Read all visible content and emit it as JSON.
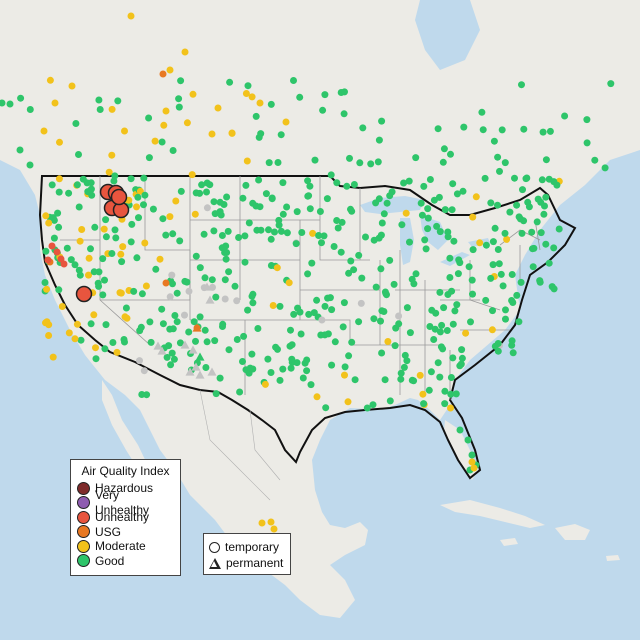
{
  "colors": {
    "water": "#bfd9ec",
    "land": "#ecebe6",
    "us_land": "#efeeea",
    "border": "#111111",
    "state_line": "#9a9a9a",
    "hazardous": "#7e2a2a",
    "very_unhealthy": "#8e5bb0",
    "unhealthy": "#e8553e",
    "usg": "#e87822",
    "moderate": "#f2c21b",
    "good": "#2ec56a",
    "nodata": "#c3c3c3"
  },
  "legend": {
    "title": "Air Quality Index",
    "items": [
      {
        "label": "Hazardous",
        "color": "#7e2a2a"
      },
      {
        "label": "Very Unhealthy",
        "color": "#8e5bb0"
      },
      {
        "label": "Unhealthy",
        "color": "#e8553e"
      },
      {
        "label": "USG",
        "color": "#e87822"
      },
      {
        "label": "Moderate",
        "color": "#f2c21b"
      },
      {
        "label": "Good",
        "color": "#2ec56a"
      }
    ]
  },
  "shape_legend": {
    "items": [
      {
        "label": "temporary",
        "shape": "circle"
      },
      {
        "label": "permanent",
        "shape": "triangle"
      }
    ]
  },
  "markers": {
    "unhealthy_large": [
      [
        108,
        192
      ],
      [
        116,
        193
      ],
      [
        112,
        208
      ],
      [
        121,
        210
      ],
      [
        119,
        197
      ],
      [
        84,
        294
      ]
    ],
    "unhealthy_small": [
      [
        52,
        246
      ],
      [
        57,
        252
      ],
      [
        61,
        259
      ],
      [
        64,
        264
      ],
      [
        48,
        260
      ]
    ],
    "usg": [
      [
        163,
        74
      ],
      [
        197,
        328
      ],
      [
        166,
        283
      ],
      [
        50,
        262
      ]
    ],
    "nodata_triangles": [
      [
        162,
        351
      ],
      [
        158,
        346
      ],
      [
        185,
        345
      ],
      [
        193,
        350
      ],
      [
        200,
        375
      ],
      [
        196,
        367
      ],
      [
        212,
        372
      ],
      [
        190,
        372
      ],
      [
        207,
        287
      ],
      [
        210,
        300
      ]
    ]
  }
}
